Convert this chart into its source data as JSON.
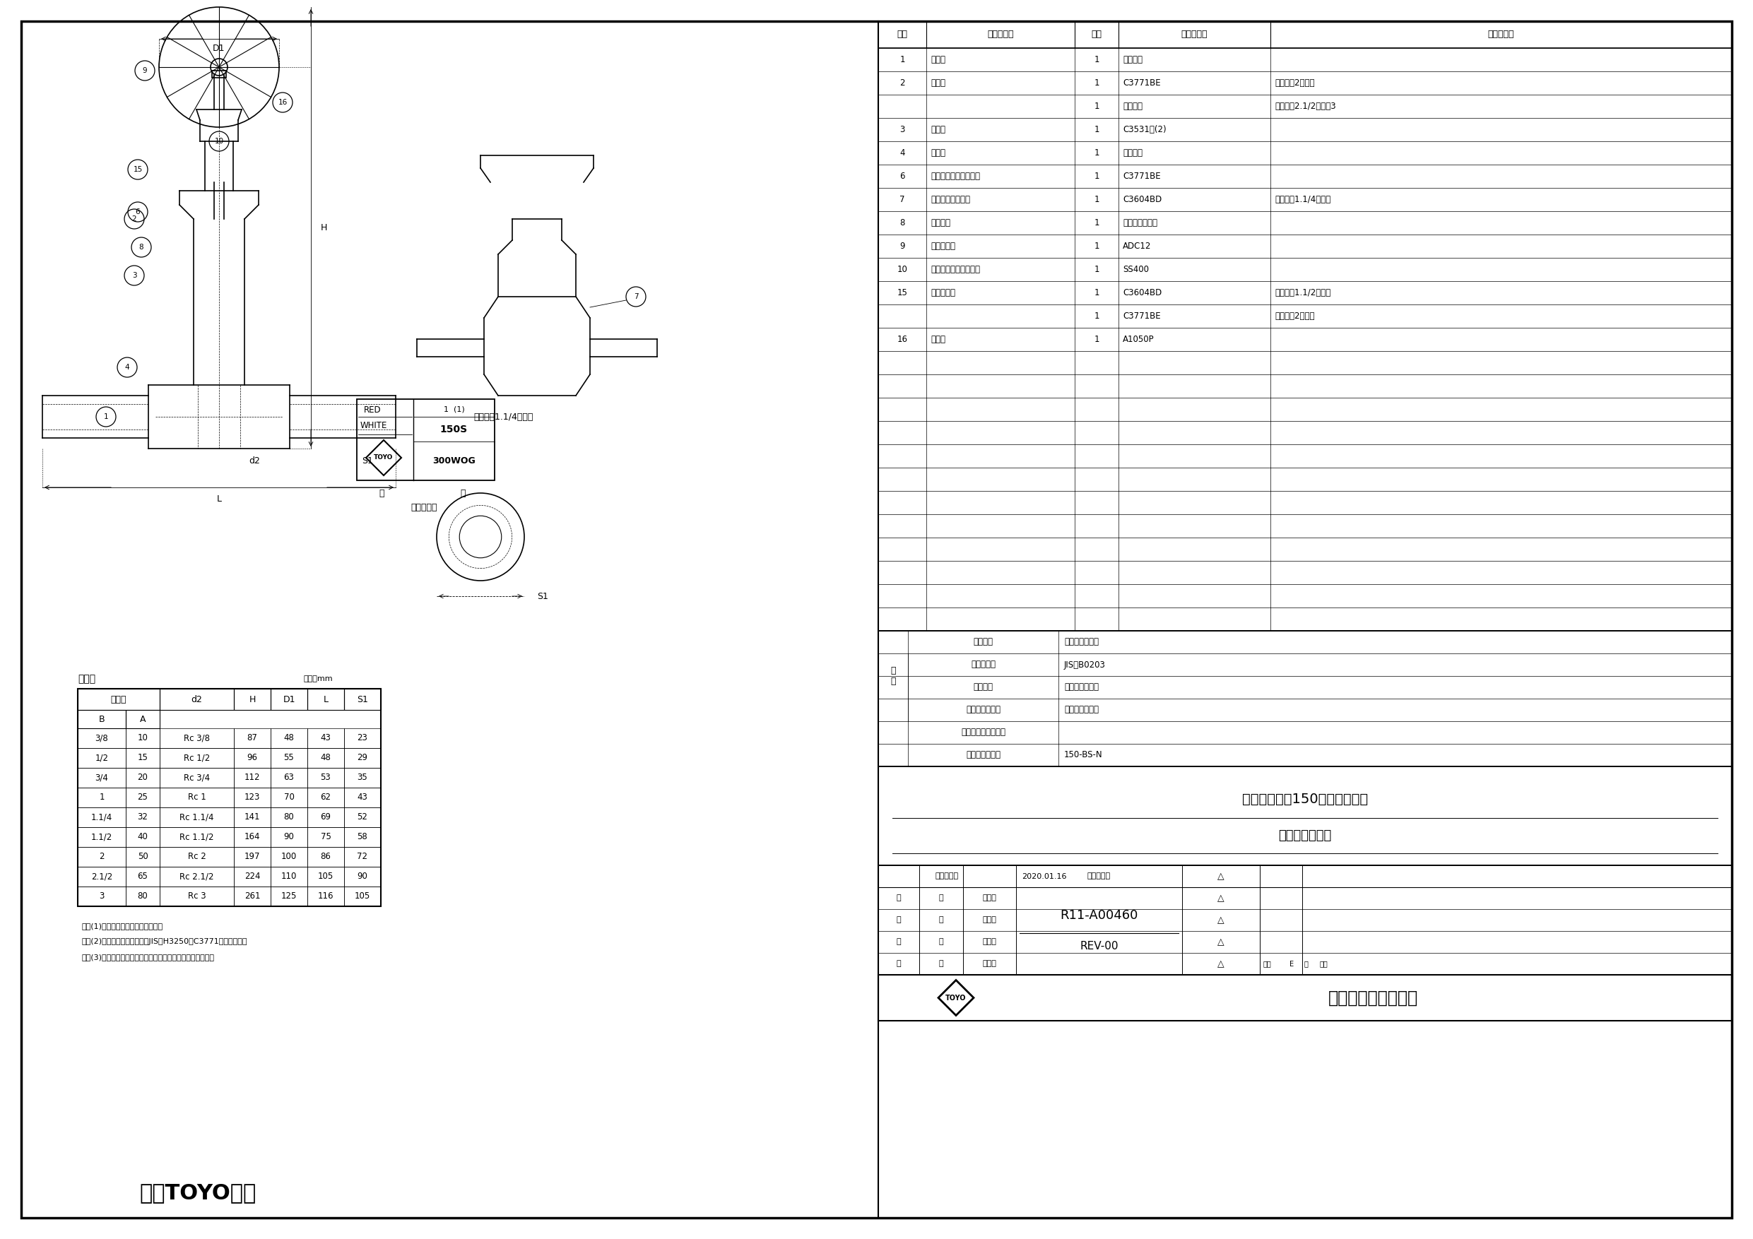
{
  "page_bg": "#ffffff",
  "border_color": "#000000",
  "product_title1": "青銅　クラス150　ねじ込み形",
  "product_title2": "内ねじ　仕切弁",
  "drawing_number": "R11-A00460",
  "rev": "REV-00",
  "date": "2020.01.16",
  "staff": [
    [
      "承",
      "認",
      "牛　川"
    ],
    [
      "検",
      "図",
      "中　村"
    ],
    [
      "設",
      "計",
      "松　木"
    ],
    [
      "製",
      "図",
      "田　中"
    ]
  ],
  "parts_table_headers": [
    "部番",
    "部　品　名",
    "個数",
    "材　　　料",
    "記　　　事"
  ],
  "parts_table_data": [
    [
      "1",
      "弁　箱",
      "1",
      "青銅鋳物",
      ""
    ],
    [
      "2",
      "ふ　た",
      "1",
      "C3771BE",
      "呼び径　2　以下"
    ],
    [
      "",
      "",
      "1",
      "青銅鋳物",
      "呼び径　2.1/2　＆　3"
    ],
    [
      "3",
      "弁　棒",
      "1",
      "C3531　(2)",
      ""
    ],
    [
      "4",
      "弁　体",
      "1",
      "青銅鋳物",
      ""
    ],
    [
      "6",
      "パッキン押さえナット",
      "1",
      "C3771BE",
      ""
    ],
    [
      "7",
      "パッキン押さえ輪",
      "1",
      "C3604BD",
      "呼び径　1.1/4　以上"
    ],
    [
      "8",
      "パッキン",
      "1",
      "非石綿パッキン",
      ""
    ],
    [
      "9",
      "ハンドル車",
      "1",
      "ADC12",
      ""
    ],
    [
      "10",
      "ハンドル押さえナット",
      "1",
      "SS400",
      ""
    ],
    [
      "15",
      "パッキン箱",
      "1",
      "C3604BD",
      "呼び径　1.1/2　以下"
    ],
    [
      "",
      "",
      "1",
      "C3771BE",
      "呼び径　2　以上"
    ],
    [
      "16",
      "銘　板",
      "1",
      "A1050P",
      ""
    ],
    [
      "",
      "",
      "",
      "",
      ""
    ],
    [
      "",
      "",
      "",
      "",
      ""
    ],
    [
      "",
      "",
      "",
      "",
      ""
    ],
    [
      "",
      "",
      "",
      "",
      ""
    ],
    [
      "",
      "",
      "",
      "",
      ""
    ],
    [
      "",
      "",
      "",
      "",
      ""
    ],
    [
      "",
      "",
      "",
      "",
      ""
    ],
    [
      "",
      "",
      "",
      "",
      ""
    ],
    [
      "",
      "",
      "",
      "",
      ""
    ],
    [
      "",
      "",
      "",
      "",
      ""
    ],
    [
      "",
      "",
      "",
      "",
      ""
    ],
    [
      "",
      "",
      "",
      "",
      ""
    ]
  ],
  "spec_table": [
    [
      "規\n格",
      "面　　間",
      "メーカー　標準"
    ],
    [
      "",
      "管　接　続",
      "JIS　B0203"
    ],
    [
      "",
      "肉　　厚",
      "メーカー　標準"
    ],
    [
      "",
      "圧　力　検　査",
      "メーカー　標準"
    ],
    [
      "",
      "製　品　コ　ー　ド",
      ""
    ],
    [
      "",
      "製　品　記　号",
      "150-BS-N"
    ]
  ],
  "dim_table_title": "寸法表",
  "dim_unit": "単位：mm",
  "dim_data": [
    [
      "3/8",
      "10",
      "Rc 3/8",
      "87",
      "48",
      "43",
      "23"
    ],
    [
      "1/2",
      "15",
      "Rc 1/2",
      "96",
      "55",
      "48",
      "29"
    ],
    [
      "3/4",
      "20",
      "Rc 3/4",
      "112",
      "63",
      "53",
      "35"
    ],
    [
      "1",
      "25",
      "Rc 1",
      "123",
      "70",
      "62",
      "43"
    ],
    [
      "1.1/4",
      "32",
      "Rc 1.1/4",
      "141",
      "80",
      "69",
      "52"
    ],
    [
      "1.1/2",
      "40",
      "Rc 1.1/2",
      "164",
      "90",
      "75",
      "58"
    ],
    [
      "2",
      "50",
      "Rc 2",
      "197",
      "100",
      "86",
      "72"
    ],
    [
      "2.1/2",
      "65",
      "Rc 2.1/2",
      "224",
      "110",
      "105",
      "90"
    ],
    [
      "3",
      "80",
      "Rc 3",
      "261",
      "125",
      "116",
      "105"
    ]
  ],
  "notes": [
    "注　(1)　呼び径を表わしています。",
    "　　(2)　引張強さと伸びは、JIS　H3250のC3771と同等以上。",
    "　　(3)　可燃性ガス・毒性ガスには使用しないでください。"
  ],
  "callout_note": "呼び径　1.1/4　以上",
  "label_note2": "銘出し表示",
  "company": "東洋バルヴ株式会社"
}
